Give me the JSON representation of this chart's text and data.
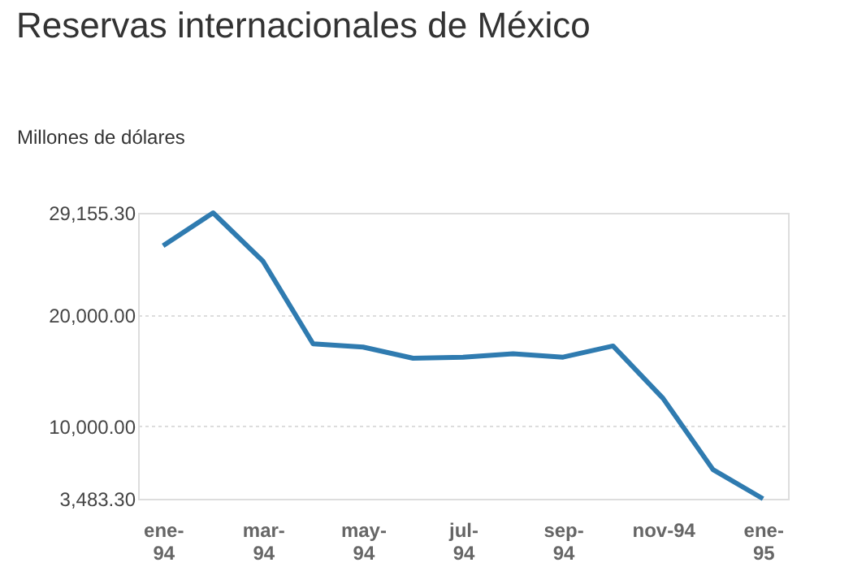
{
  "chart_data": {
    "type": "line",
    "title": "Reservas internacionales de México",
    "ylabel": "Millones de dólares",
    "categories": [
      "ene-\n94",
      null,
      "mar-\n94",
      null,
      "may-\n94",
      null,
      "jul-\n94",
      null,
      "sep-\n94",
      null,
      "nov-94",
      null,
      "ene-\n95"
    ],
    "series": [
      {
        "color": "#2f7bb0",
        "values": [
          26200,
          29155.3,
          24800,
          17400,
          17100,
          16100,
          16200,
          16500,
          16200,
          17200,
          12500,
          6100,
          3483.3
        ]
      }
    ],
    "ylim": [
      3483.3,
      29155.3
    ],
    "yticks": [
      {
        "value": 3483.3,
        "label": "3,483.30"
      },
      {
        "value": 10000,
        "label": "10,000.00"
      },
      {
        "value": 20000,
        "label": "20,000.00"
      },
      {
        "value": 29155.3,
        "label": "29,155.30"
      }
    ],
    "grid": "y",
    "marker": "none",
    "line_style": "solid"
  }
}
